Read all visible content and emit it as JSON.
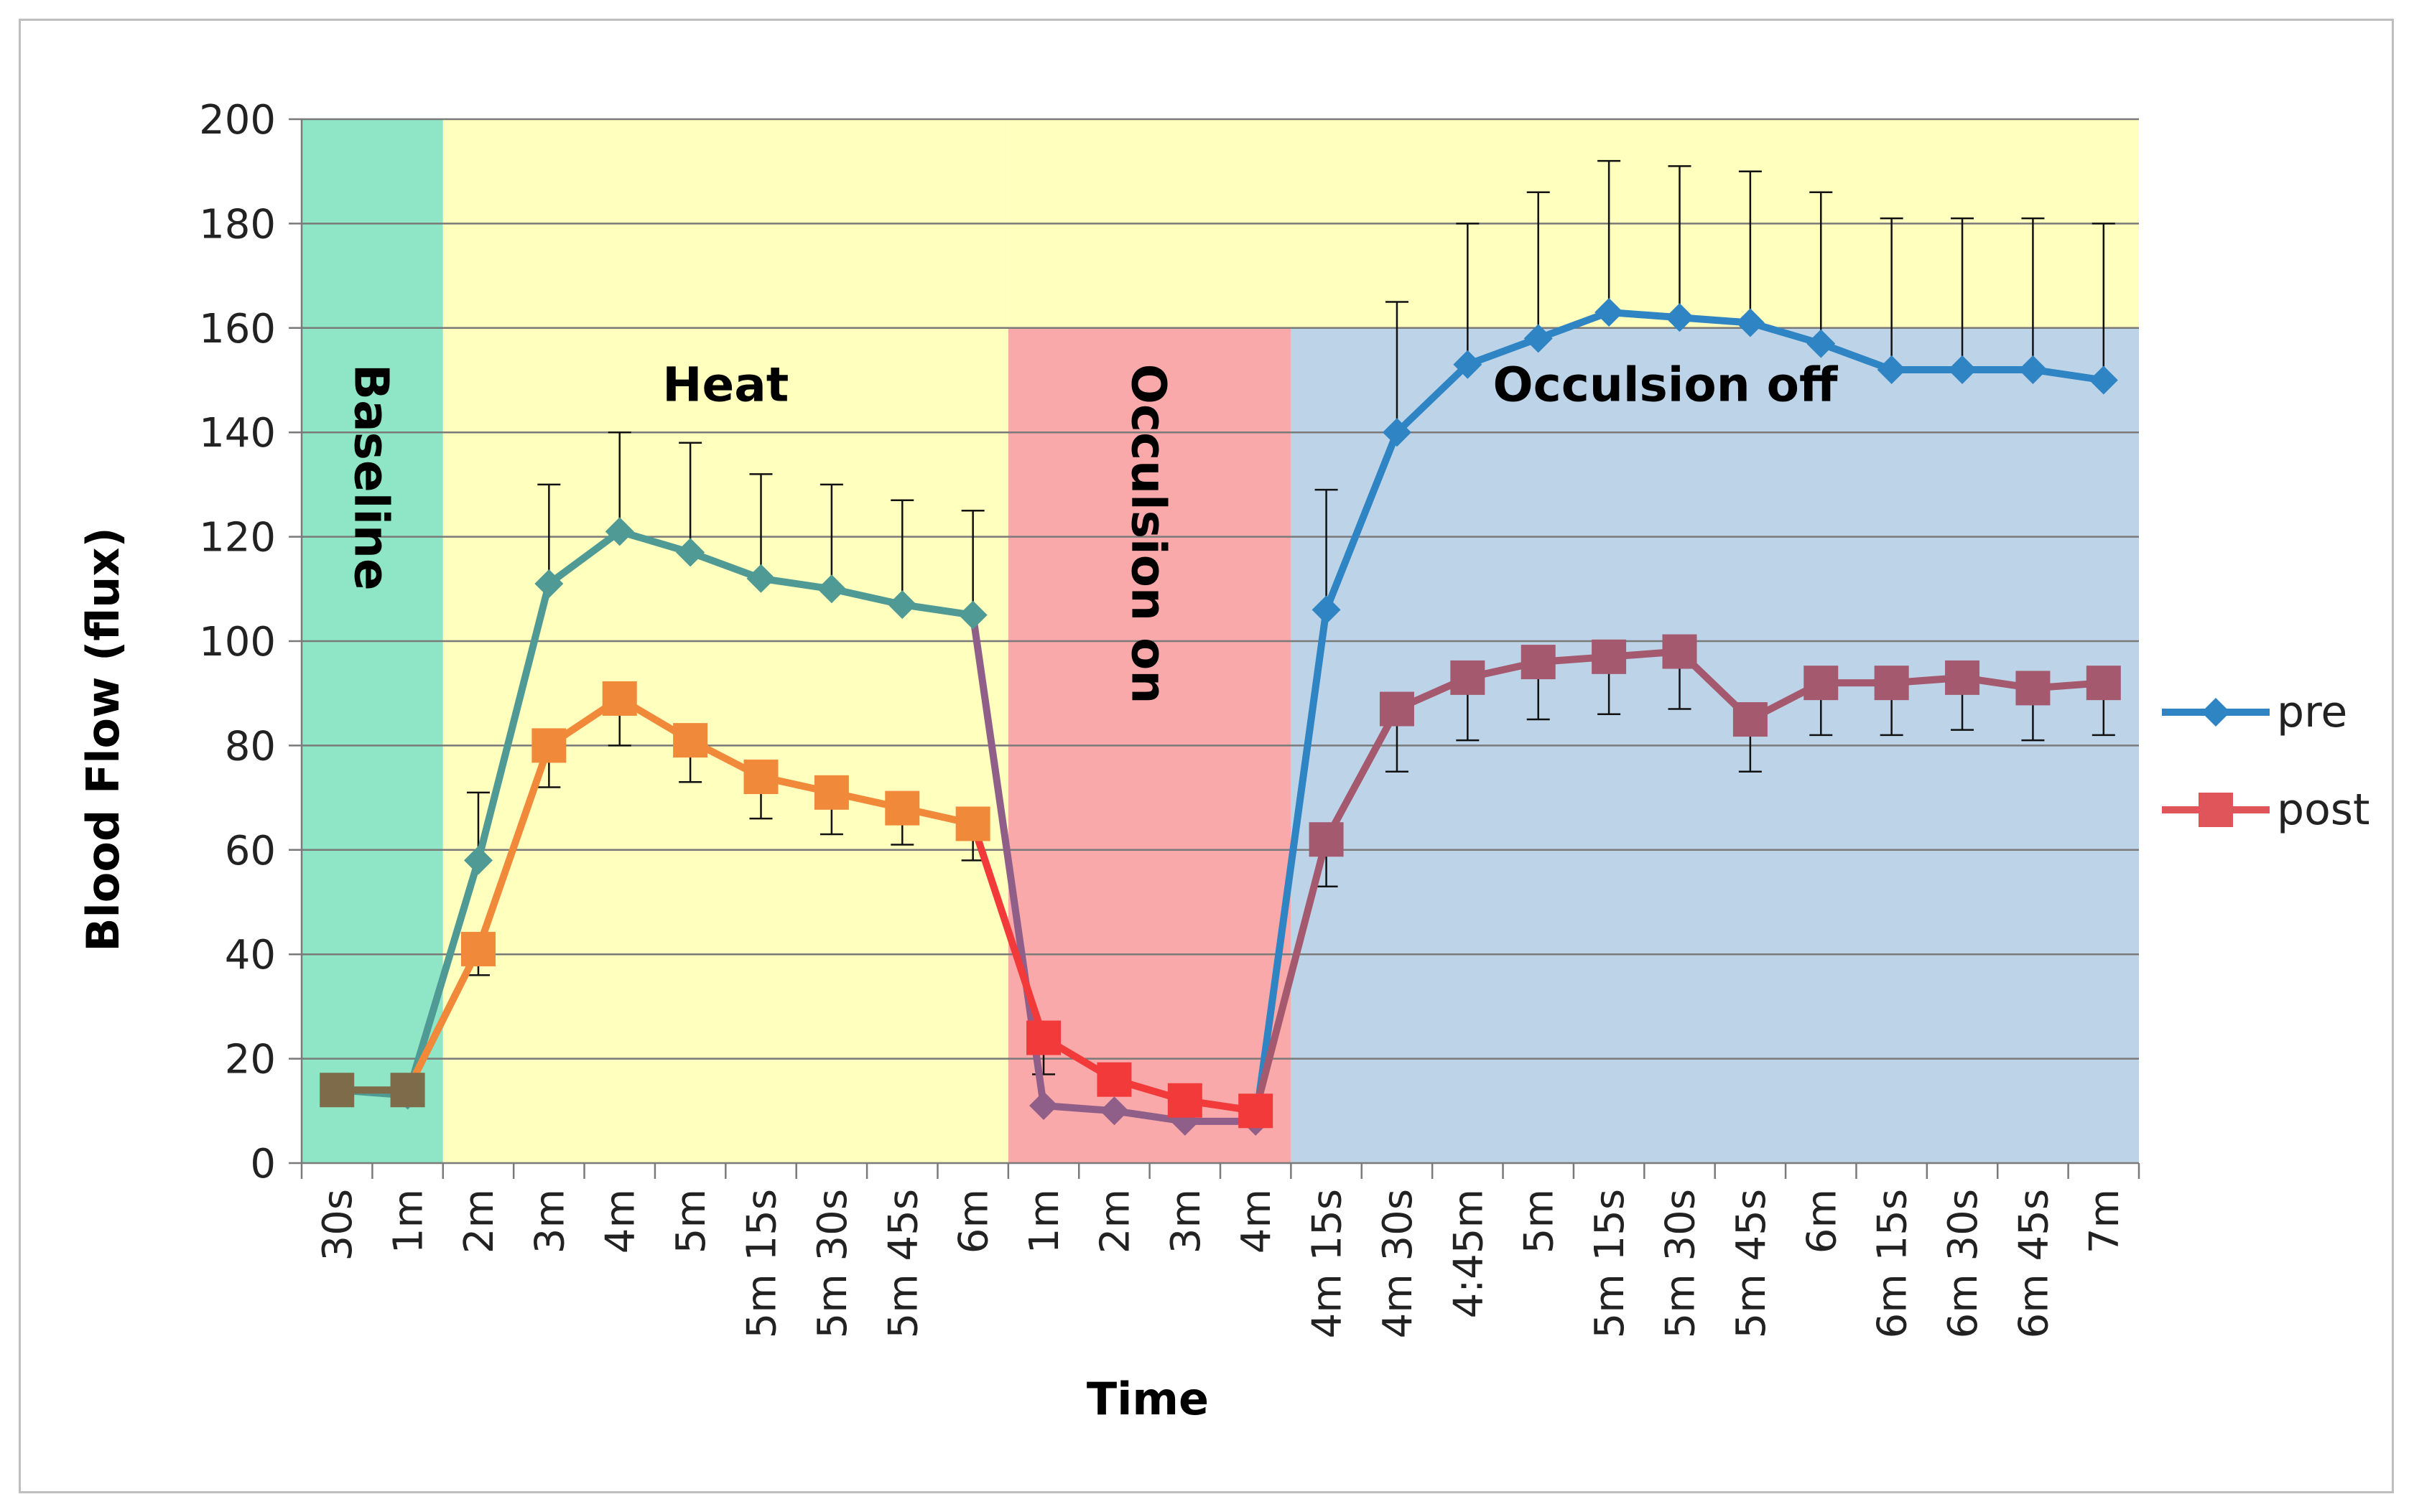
{
  "chart_data": {
    "type": "line",
    "title": "",
    "xlabel": "Time",
    "ylabel": "Blood Flow (flux)",
    "ylim": [
      0,
      200
    ],
    "yticks": [
      0,
      20,
      40,
      60,
      80,
      100,
      120,
      140,
      160,
      180,
      200
    ],
    "categories": [
      "30s",
      "1m",
      "2m",
      "3m",
      "4m",
      "5m",
      "5m 15s",
      "5m 30s",
      "5m 45s",
      "6m",
      "1m",
      "2m",
      "3m",
      "4m",
      "4m 15s",
      "4m 30s",
      "4:45m",
      "5m",
      "5m 15s",
      "5m 30s",
      "5m 45s",
      "6m",
      "6m 15s",
      "6m 30s",
      "6m 45s",
      "7m"
    ],
    "regions": [
      {
        "label": "Baseline",
        "from": 0,
        "to": 1,
        "ymax": 200,
        "color": "#8ee6c6",
        "orientation": "vertical"
      },
      {
        "label": "Heat",
        "from": 2,
        "to": 9,
        "ymax": 200,
        "color": "#ffffbe",
        "orientation": "horizontal"
      },
      {
        "label": "Occulsion on",
        "from": 10,
        "to": 13,
        "ymax": 160,
        "color": "#f9a9a9",
        "orientation": "vertical"
      },
      {
        "label": "Occulsion off",
        "from": 14,
        "to": 25,
        "ymax": 160,
        "color": "#bdd4e8",
        "orientation": "horizontal"
      }
    ],
    "series": [
      {
        "name": "pre",
        "color": "#2f84c4",
        "marker": "diamond",
        "values": [
          14,
          13,
          58,
          111,
          121,
          117,
          112,
          110,
          107,
          105,
          11,
          10,
          8,
          8,
          106,
          140,
          153,
          158,
          163,
          162,
          161,
          157,
          152,
          152,
          152,
          150
        ],
        "error": [
          0,
          0,
          13,
          19,
          19,
          21,
          20,
          20,
          20,
          20,
          0,
          0,
          0,
          0,
          23,
          25,
          27,
          28,
          29,
          29,
          29,
          29,
          29,
          29,
          29,
          30
        ]
      },
      {
        "name": "post",
        "color": "#e0555a",
        "marker": "square",
        "values": [
          14,
          14,
          41,
          80,
          89,
          81,
          74,
          71,
          68,
          65,
          24,
          16,
          12,
          10,
          62,
          87,
          93,
          96,
          97,
          98,
          85,
          92,
          92,
          93,
          91,
          92
        ],
        "error": [
          0,
          0,
          5,
          8,
          9,
          8,
          8,
          8,
          7,
          7,
          7,
          0,
          0,
          0,
          9,
          12,
          12,
          11,
          11,
          11,
          10,
          10,
          10,
          10,
          10,
          10
        ]
      }
    ],
    "segment_colors": {
      "pre": [
        "#4f9a95",
        "#4f9a95",
        "#4f9a95",
        "#4f9a95",
        "#4f9a95",
        "#4f9a95",
        "#4f9a95",
        "#4f9a95",
        "#4f9a95",
        "#4f9a95",
        "#8f5f8a",
        "#8f5f8a",
        "#8f5f8a",
        "#8f5f8a",
        "#2f84c4",
        "#2f84c4",
        "#2f84c4",
        "#2f84c4",
        "#2f84c4",
        "#2f84c4",
        "#2f84c4",
        "#2f84c4",
        "#2f84c4",
        "#2f84c4",
        "#2f84c4",
        "#2f84c4"
      ],
      "post": [
        "#7d6b4a",
        "#7d6b4a",
        "#f08a3a",
        "#f08a3a",
        "#f08a3a",
        "#f08a3a",
        "#f08a3a",
        "#f08a3a",
        "#f08a3a",
        "#f08a3a",
        "#f23a3a",
        "#f23a3a",
        "#f23a3a",
        "#f23a3a",
        "#a5596e",
        "#a5596e",
        "#a5596e",
        "#a5596e",
        "#a5596e",
        "#a5596e",
        "#a5596e",
        "#a5596e",
        "#a5596e",
        "#a5596e",
        "#a5596e",
        "#a5596e"
      ]
    },
    "legend_position": "right"
  }
}
